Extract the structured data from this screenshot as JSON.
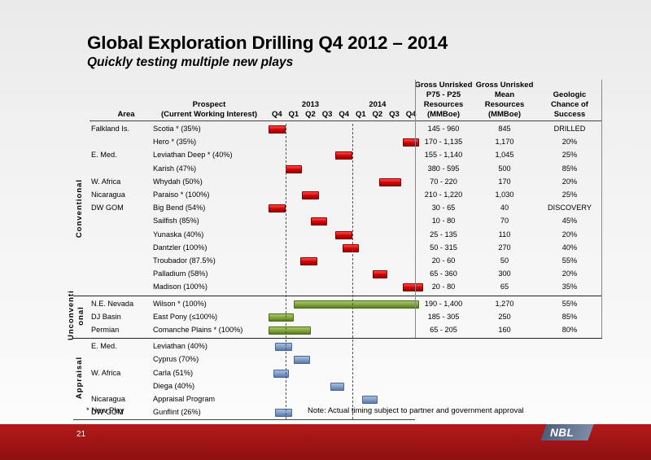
{
  "title": "Global Exploration Drilling Q4 2012 – 2014",
  "subtitle": "Quickly testing multiple new plays",
  "headers": {
    "area": "Area",
    "prospect_line1": "Prospect",
    "prospect_line2": "(Current Working Interest)",
    "year_2013": "2013",
    "year_2014": "2014",
    "quarters": [
      "Q4",
      "Q1",
      "Q2",
      "Q3",
      "Q4",
      "Q1",
      "Q2",
      "Q3",
      "Q4"
    ],
    "p75_lines": [
      "Gross Unrisked",
      "P75 - P25",
      "Resources",
      "(MMBoe)"
    ],
    "mean_lines": [
      "Gross Unrisked",
      "Mean",
      "Resources",
      "(MMBoe)"
    ],
    "geo_lines": [
      "Geologic",
      "Chance of",
      "Success"
    ]
  },
  "groups": {
    "conventional": "Conventional",
    "unconventional_line1": "Unconventi",
    "unconventional_line2": "onal",
    "appraisal": "Appraisal"
  },
  "rows": [
    {
      "area": "Falkland Is.",
      "prospect": "Scotia * (35%)",
      "range": "145 - 960",
      "mean": "845",
      "geo": "DRILLED",
      "bar": {
        "color": "red",
        "start": 0,
        "end": 1
      }
    },
    {
      "area": "",
      "prospect": "Hero * (35%)",
      "range": "170 - 1,135",
      "mean": "1,170",
      "geo": "20%",
      "bar": {
        "color": "red",
        "start": 8,
        "end": 9
      }
    },
    {
      "area": "E. Med.",
      "prospect": "Leviathan Deep * (40%)",
      "range": "155 - 1,140",
      "mean": "1,045",
      "geo": "25%",
      "bar": {
        "color": "red",
        "start": 4,
        "end": 5
      }
    },
    {
      "area": "",
      "prospect": "Karish (47%)",
      "range": "380 - 595",
      "mean": "500",
      "geo": "85%",
      "bar": {
        "color": "red",
        "start": 1,
        "end": 2
      }
    },
    {
      "area": "W. Africa",
      "prospect": "Whydah (50%)",
      "range": "70 - 220",
      "mean": "170",
      "geo": "20%",
      "bar": {
        "color": "red",
        "start": 6.6,
        "end": 7.9
      }
    },
    {
      "area": "Nicaragua",
      "prospect": "Paraiso * (100%)",
      "range": "210 - 1,220",
      "mean": "1,030",
      "geo": "25%",
      "bar": {
        "color": "red",
        "start": 2,
        "end": 3
      }
    },
    {
      "area": "DW GOM",
      "prospect": "Big Bend (54%)",
      "range": "30 - 65",
      "mean": "40",
      "geo": "DISCOVERY",
      "bar": {
        "color": "red",
        "start": 0,
        "end": 1
      }
    },
    {
      "area": "",
      "prospect": "Sailfish (85%)",
      "range": "10 - 80",
      "mean": "70",
      "geo": "45%",
      "bar": {
        "color": "red",
        "start": 2.5,
        "end": 3.5
      }
    },
    {
      "area": "",
      "prospect": "Yunaska (40%)",
      "range": "25 - 135",
      "mean": "110",
      "geo": "20%",
      "bar": {
        "color": "red",
        "start": 4,
        "end": 5
      }
    },
    {
      "area": "",
      "prospect": "Dantzler (100%)",
      "range": "50 - 315",
      "mean": "270",
      "geo": "40%",
      "bar": {
        "color": "red",
        "start": 4.4,
        "end": 5.4
      }
    },
    {
      "area": "",
      "prospect": "Troubador (87.5%)",
      "range": "20 - 60",
      "mean": "50",
      "geo": "55%",
      "bar": {
        "color": "red",
        "start": 1.9,
        "end": 2.9
      }
    },
    {
      "area": "",
      "prospect": "Palladium (58%)",
      "range": "65 - 360",
      "mean": "300",
      "geo": "20%",
      "bar": {
        "color": "red",
        "start": 6.2,
        "end": 7.1
      }
    },
    {
      "area": "",
      "prospect": "Madison (100%)",
      "range": "20 - 80",
      "mean": "65",
      "geo": "35%",
      "bar": {
        "color": "red",
        "start": 8,
        "end": 9.2
      }
    },
    {
      "area": "N.E. Nevada",
      "prospect": "Wilson * (100%)",
      "range": "190 - 1,400",
      "mean": "1,270",
      "geo": "55%",
      "bar": {
        "color": "green",
        "start": 1.5,
        "end": 9
      }
    },
    {
      "area": "DJ Basin",
      "prospect": "East Pony (≤100%)",
      "range": "185 - 305",
      "mean": "250",
      "geo": "85%",
      "bar": {
        "color": "green",
        "start": 0,
        "end": 1.5
      }
    },
    {
      "area": "Permian",
      "prospect": "Comanche Plains * (100%)",
      "range": "65 - 205",
      "mean": "160",
      "geo": "80%",
      "bar": {
        "color": "green",
        "start": 0,
        "end": 2.5
      }
    },
    {
      "area": "E. Med.",
      "prospect": "Leviathan (40%)",
      "range": "",
      "mean": "",
      "geo": "",
      "bar": {
        "color": "blue",
        "start": 0.4,
        "end": 1.4
      }
    },
    {
      "area": "",
      "prospect": "Cyprus (70%)",
      "range": "",
      "mean": "",
      "geo": "",
      "bar": {
        "color": "blue",
        "start": 1.5,
        "end": 2.5
      }
    },
    {
      "area": "W. Africa",
      "prospect": "Carla (51%)",
      "range": "",
      "mean": "",
      "geo": "",
      "bar": {
        "color": "blue",
        "start": 0.3,
        "end": 1.2
      }
    },
    {
      "area": "",
      "prospect": "Diega (40%)",
      "range": "",
      "mean": "",
      "geo": "",
      "bar": {
        "color": "blue",
        "start": 3.7,
        "end": 4.5
      }
    },
    {
      "area": "Nicaragua",
      "prospect": "Appraisal Program",
      "range": "",
      "mean": "",
      "geo": "",
      "bar": {
        "color": "blue",
        "start": 5.6,
        "end": 6.5
      }
    },
    {
      "area": "DW GOM",
      "prospect": "Gunflint (26%)",
      "range": "",
      "mean": "",
      "geo": "",
      "bar": {
        "color": "blue",
        "start": 0.4,
        "end": 1.4
      }
    }
  ],
  "footnote_left": "* New Play",
  "footnote_right": "Note: Actual timing subject to partner and government approval",
  "page_number": "21",
  "logo": "NBL",
  "colors": {
    "red": "#d10000",
    "green": "#7fa33b",
    "blue": "#7f9bc5",
    "footer": "#9e1414"
  }
}
